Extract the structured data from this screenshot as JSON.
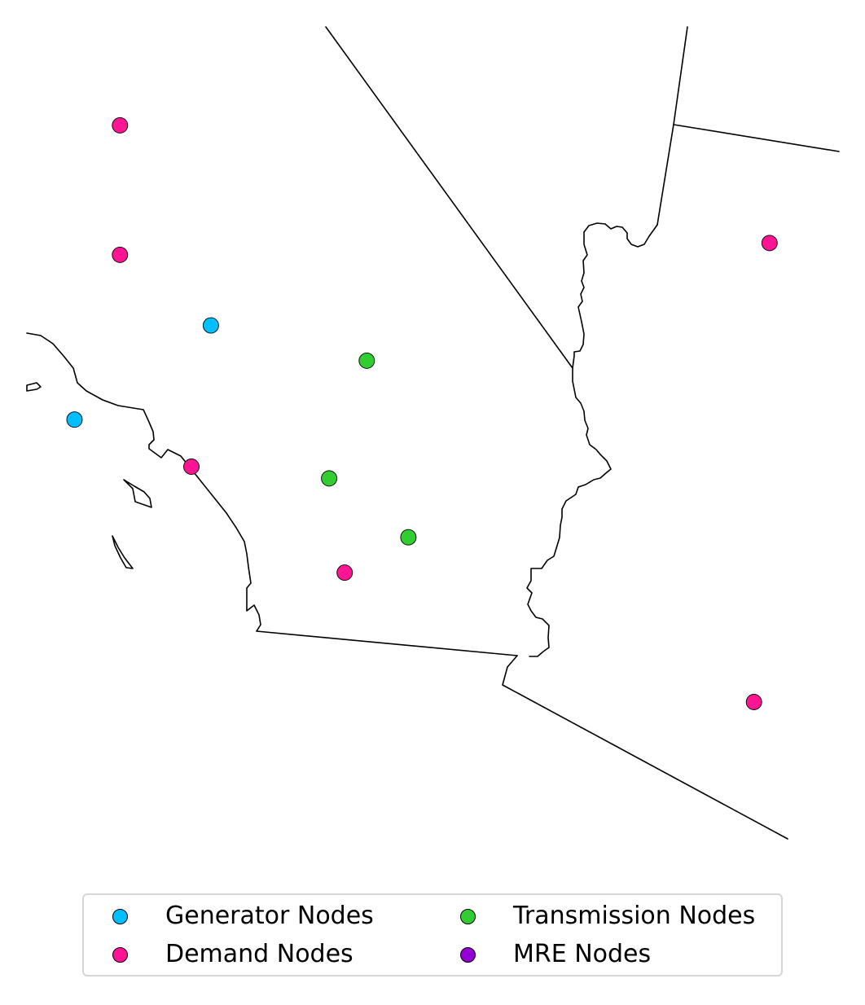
{
  "map": {
    "nodes": [
      {
        "type": "demand",
        "lon": -119.6,
        "lat": 35.45
      },
      {
        "type": "demand",
        "lon": -119.6,
        "lat": 34.9
      },
      {
        "type": "generator",
        "lon": -118.9,
        "lat": 34.6
      },
      {
        "type": "transmission",
        "lon": -117.7,
        "lat": 34.45
      },
      {
        "type": "generator",
        "lon": -119.95,
        "lat": 34.2
      },
      {
        "type": "demand",
        "lon": -119.05,
        "lat": 34.0
      },
      {
        "type": "transmission",
        "lon": -117.99,
        "lat": 33.95
      },
      {
        "type": "transmission",
        "lon": -117.38,
        "lat": 33.7
      },
      {
        "type": "demand",
        "lon": -117.87,
        "lat": 33.55
      },
      {
        "type": "demand",
        "lon": -114.6,
        "lat": 34.95
      },
      {
        "type": "demand",
        "lon": -114.72,
        "lat": 33.0
      }
    ]
  },
  "legend": {
    "items": [
      {
        "key": "generator",
        "label": "Generator Nodes",
        "color": "#00BFFF"
      },
      {
        "key": "demand",
        "label": "Demand Nodes",
        "color": "#FF1493"
      },
      {
        "key": "transmission",
        "label": "Transmission Nodes",
        "color": "#32CD32"
      },
      {
        "key": "mre",
        "label": "MRE Nodes",
        "color": "#9400D3"
      }
    ]
  }
}
